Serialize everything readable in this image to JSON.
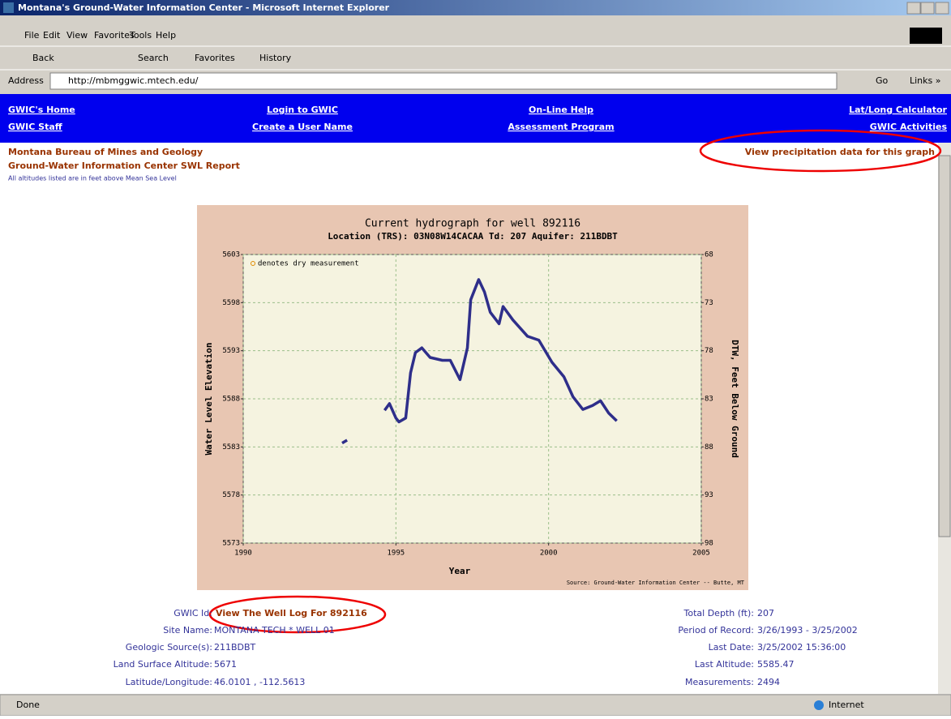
{
  "window": {
    "title": "Montana's Ground-Water Information Center - Microsoft Internet Explorer",
    "menu": [
      "File",
      "Edit",
      "View",
      "Favorites",
      "Tools",
      "Help"
    ],
    "toolbar": [
      "Back",
      "Search",
      "Favorites",
      "History"
    ],
    "address_label": "Address",
    "url": "http://mbmggwic.mtech.edu/",
    "go": "Go",
    "links": "Links »"
  },
  "nav": [
    "GWIC's Home",
    "GWIC Staff",
    "Login to GWIC",
    "Create a User Name",
    "On-Line Help",
    "Assessment Program",
    "Lat/Long Calculator",
    "GWIC Activities"
  ],
  "header": {
    "org": "Montana Bureau of Mines and Geology",
    "report": "Ground-Water Information Center SWL Report",
    "note": "All altitudes listed are in feet above Mean Sea Level",
    "precip_link": "View precipitation data for this graph"
  },
  "chart_data": {
    "type": "line",
    "title": "Current hydrograph for well 892116",
    "subtitle": "Location (TRS): 03N08W14CACAA Td: 207 Aquifer: 211BDBT",
    "xlabel": "Year",
    "ylabel": "Water Level Elevation",
    "y2label": "DTW, Feet Below Ground",
    "legend_note": "denotes dry measurement",
    "source": "Source: Ground-Water Information Center -- Butte, MT",
    "color": "#2e2e8a",
    "grid": true,
    "x": [
      1993.24,
      1993.4,
      null,
      1994.63,
      1994.79,
      1995.0,
      1995.1,
      1995.32,
      1995.48,
      1995.64,
      1995.85,
      1996.12,
      1996.52,
      1996.78,
      1997.1,
      1997.34,
      1997.45,
      1997.71,
      1997.9,
      1998.09,
      1998.38,
      1998.51,
      1998.83,
      1999.31,
      1999.68,
      2000.11,
      2000.5,
      2000.8,
      2001.12,
      2001.44,
      2001.7,
      2001.97,
      2002.23
    ],
    "values": [
      5583.4,
      5583.7,
      null,
      5586.8,
      5587.5,
      5586.0,
      5585.6,
      5586.0,
      5590.7,
      5592.8,
      5593.3,
      5592.3,
      5592.0,
      5592.0,
      5590.0,
      5593.3,
      5598.3,
      5600.4,
      5599.1,
      5597.0,
      5595.8,
      5597.6,
      5596.2,
      5594.5,
      5594.1,
      5591.8,
      5590.3,
      5588.2,
      5586.9,
      5587.3,
      5587.8,
      5586.5,
      5585.7
    ],
    "xlim": [
      1990,
      2005
    ],
    "xticks": [
      1990,
      1995,
      2000,
      2005
    ],
    "ylim": [
      5573,
      5603
    ],
    "yticks": [
      5573,
      5578,
      5583,
      5588,
      5593,
      5598,
      5603
    ],
    "y2lim": [
      98,
      68
    ],
    "y2ticks": [
      98,
      93,
      88,
      83,
      78,
      73,
      68
    ]
  },
  "info": {
    "left": [
      {
        "label": "GWIC Id:",
        "value": "View The Well Log For 892116"
      },
      {
        "label": "Site Name:",
        "value": "MONTANA TECH * WELL 01"
      },
      {
        "label": "Geologic Source(s):",
        "value": "211BDBT"
      },
      {
        "label": "Land Surface Altitude:",
        "value": "5671"
      },
      {
        "label": "Latitude/Longitude:",
        "value": "46.0101 , -112.5613"
      }
    ],
    "right": [
      {
        "label": "Total Depth (ft):",
        "value": "207"
      },
      {
        "label": "Period of Record:",
        "value": "3/26/1993 - 3/25/2002"
      },
      {
        "label": "Last Date:",
        "value": "3/25/2002 15:36:00"
      },
      {
        "label": "Last Altitude:",
        "value": "5585.47"
      },
      {
        "label": "Measurements:",
        "value": "2494"
      }
    ]
  },
  "status": {
    "text": "Done",
    "zone": "Internet"
  }
}
